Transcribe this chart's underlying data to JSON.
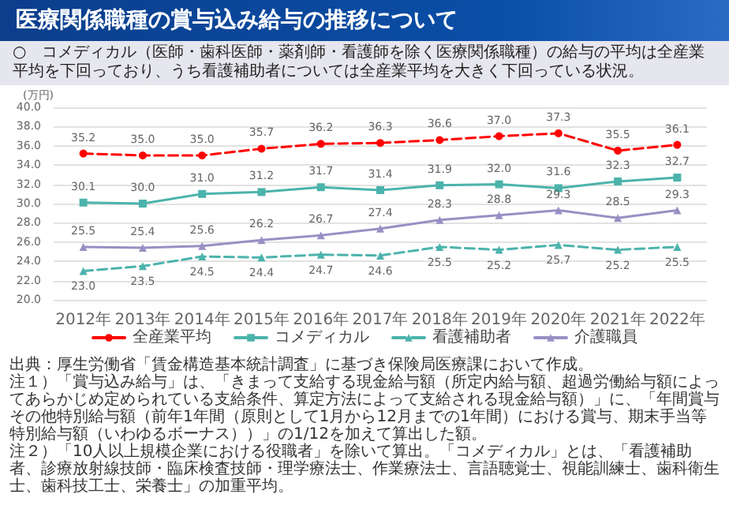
{
  "chart_data": {
    "type": "line",
    "title": "医療関係職種の賞与込み給与の推移について",
    "subtitle": "○　コメディカル（医師・歯科医師・薬剤師・看護師を除く医療関係職種）の給与の平均は全産業平均を下回っており、うち看護補助者については全産業平均を大きく下回っている状況。",
    "ylabel": "(万円)",
    "categories": [
      "2012年",
      "2013年",
      "2014年",
      "2015年",
      "2016年",
      "2017年",
      "2018年",
      "2019年",
      "2020年",
      "2021年",
      "2022年"
    ],
    "series": [
      {
        "name": "全産業平均",
        "color": "#ff0000",
        "marker": "circle",
        "line_style": "dashed",
        "values": [
          35.2,
          35.0,
          35.0,
          35.7,
          36.2,
          36.3,
          36.6,
          37.0,
          37.3,
          35.5,
          36.1
        ],
        "value_labels": [
          "35.2",
          "35.0",
          "35.0",
          "35.7",
          "36.2",
          "36.3",
          "36.6",
          "37.0",
          "37.3",
          "35.5",
          "36.1"
        ]
      },
      {
        "name": "コメディカル",
        "color": "#4bb3ac",
        "marker": "square",
        "line_style": "solid",
        "values": [
          30.1,
          30.0,
          31.0,
          31.2,
          31.7,
          31.4,
          31.9,
          32.0,
          31.6,
          32.3,
          32.7
        ],
        "value_labels": [
          "30.1",
          "30.0",
          "31.0",
          "31.2",
          "31.7",
          "31.4",
          "31.9",
          "32.0",
          "31.6",
          "32.3",
          "32.7"
        ]
      },
      {
        "name": "看護補助者",
        "color": "#4bb3ac",
        "marker": "triangle",
        "line_style": "dashed",
        "values": [
          23.0,
          23.5,
          24.5,
          24.4,
          24.7,
          24.6,
          25.5,
          25.2,
          25.7,
          25.2,
          25.5
        ],
        "value_labels": [
          "23.0",
          "23.5",
          "24.5",
          "24.4",
          "24.7",
          "24.6",
          "25.5",
          "25.2",
          "25.7",
          "25.2",
          "25.5"
        ]
      },
      {
        "name": "介護職員",
        "color": "#9a8fc4",
        "marker": "triangle",
        "line_style": "solid",
        "values": [
          25.5,
          25.4,
          25.6,
          26.2,
          26.7,
          27.4,
          28.3,
          28.8,
          29.3,
          28.5,
          29.3
        ],
        "value_labels": [
          "25.5",
          "25.4",
          "25.6",
          "26.2",
          "26.7",
          "27.4",
          "28.3",
          "28.8",
          "29.3",
          "28.5",
          "29.3"
        ]
      }
    ],
    "ylim": [
      20,
      40
    ],
    "yticks": [
      {
        "value": 20,
        "label": "20.0"
      },
      {
        "value": 22,
        "label": "22.0"
      },
      {
        "value": 24,
        "label": "24.0"
      },
      {
        "value": 26,
        "label": "26.0"
      },
      {
        "value": 28,
        "label": "28.0"
      },
      {
        "value": 30,
        "label": "30.0"
      },
      {
        "value": 32,
        "label": "32.0"
      },
      {
        "value": 34,
        "label": "34.0"
      },
      {
        "value": 36,
        "label": "36.0"
      },
      {
        "value": 38,
        "label": "38.0"
      },
      {
        "value": 40,
        "label": "40.0"
      }
    ],
    "grid": "y",
    "legend": "bottom",
    "annotations": [
      "出典：厚生労働省「賃金構造基本統計調査」に基づき保険局医療課において作成。",
      "注１）「賞与込み給与」は、「きまって支給する現金給与額（所定内給与額、超過労働給与額によってあらかじめ定められている支給条件、算定方法によって支給される現金給与額）」に、「年間賞与その他特別給与額（前年1年間（原則として1月から12月までの1年間）における賞与、期末手当等特別給与額（いわゆるボーナス））」の1/12を加えて算出した額。",
      "注２）「10人以上規模企業における役職者」を除いて算出。「コメディカル」とは、「看護補助者、診療放射線技師・臨床検査技師・理学療法士、作業療法士、言語聴覚士、視能訓練士、歯科衛生士、歯科技工士、栄養士」の加重平均。"
    ]
  }
}
